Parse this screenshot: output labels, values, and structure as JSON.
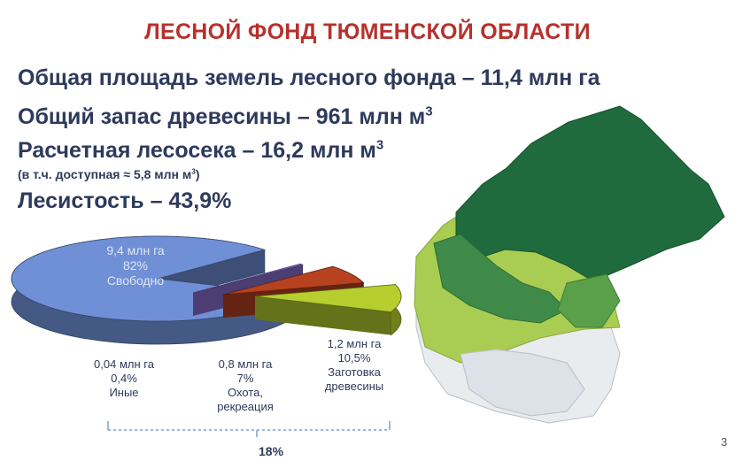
{
  "title": "ЛЕСНОЙ ФОНД ТЮМЕНСКОЙ ОБЛАСТИ",
  "facts": {
    "area": "Общая площадь земель лесного фонда – 11,4 млн га",
    "stock_text": "Общий запас древесины – 961 млн м",
    "stock_sup": "3",
    "cut_text": "Расчетная лесосека – 16,2 млн м",
    "cut_sup": "3",
    "cut_note_text": "(в т.ч. доступная ≈ 5,8 млн м",
    "cut_note_sup": "3",
    "cut_note_end": ")",
    "forest_cover": "Лесистость – 43,9%"
  },
  "chart_data": {
    "type": "pie",
    "title": "",
    "slices": [
      {
        "label": "Свободно",
        "area": "9,4 млн га",
        "percent_label": "82%",
        "value": 82,
        "color": "#6f8fd6"
      },
      {
        "label": "Иные",
        "area": "0,04 млн га",
        "percent_label": "0,4%",
        "value": 0.4,
        "color": "#8b6fd0"
      },
      {
        "label": "Охота, рекреация",
        "label_lines": [
          "Охота,",
          "рекреация"
        ],
        "area": "0,8 млн га",
        "percent_label": "7%",
        "value": 7,
        "color": "#b8421f"
      },
      {
        "label": "Заготовка древесины",
        "label_lines": [
          "Заготовка",
          "древесины"
        ],
        "area": "1,2 млн га",
        "percent_label": "10,5%",
        "value": 10.5,
        "color": "#b6cf2e"
      }
    ],
    "group_label": "18%"
  },
  "page_number": "3"
}
